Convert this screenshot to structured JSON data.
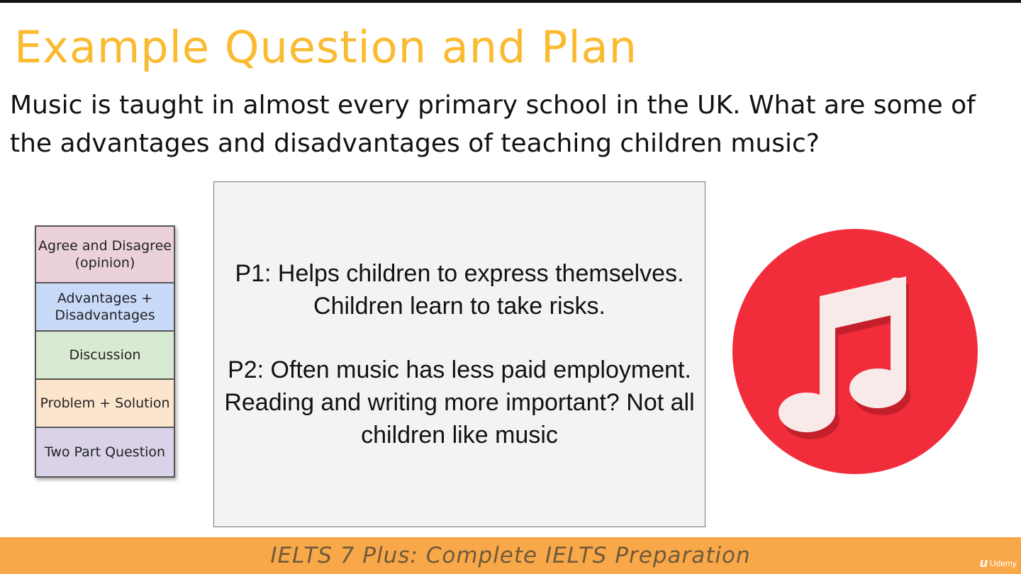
{
  "slide": {
    "title": "Example Question and Plan",
    "question": "Music is taught in almost every primary school in the UK. What are some of the advantages and disadvantages of teaching children music?"
  },
  "question_types": [
    {
      "label": "Agree and Disagree (opinion)",
      "color": "#ead1dc"
    },
    {
      "label": "Advantages + Disadvantages",
      "color": "#c9daf8"
    },
    {
      "label": "Discussion",
      "color": "#d9ead3"
    },
    {
      "label": "Problem + Solution",
      "color": "#fce5cd"
    },
    {
      "label": "Two Part Question",
      "color": "#d9d2e9"
    }
  ],
  "plan": {
    "p1": "P1: Helps children to express themselves. Children learn to take risks.",
    "p2": "P2: Often music has less paid employment. Reading and writing more important? Not all children like music"
  },
  "icon": {
    "name": "music-note-icon",
    "background": "#f22d3b",
    "note_color": "#f9eaea"
  },
  "footer": {
    "course": "IELTS 7 Plus: Complete IELTS Preparation",
    "brand": "Udemy",
    "background": "#f9a849"
  },
  "colors": {
    "title": "#fbbb31"
  }
}
